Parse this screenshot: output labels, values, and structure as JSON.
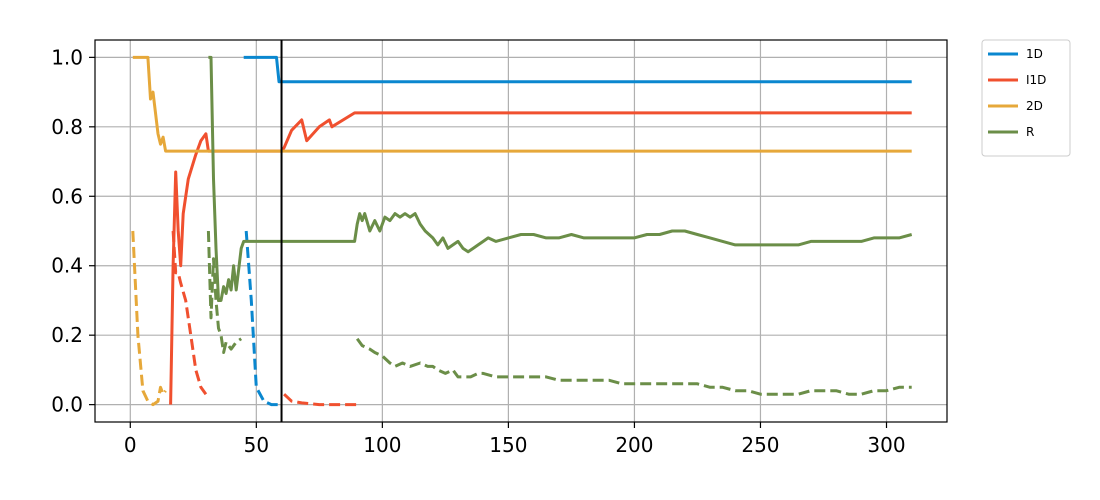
{
  "chart_data": {
    "type": "line",
    "title": "",
    "xlabel": "",
    "ylabel": "",
    "xlim": [
      -14,
      324
    ],
    "ylim": [
      -0.05,
      1.05
    ],
    "xticks": [
      0,
      50,
      100,
      150,
      200,
      250,
      300
    ],
    "yticks": [
      0.0,
      0.2,
      0.4,
      0.6,
      0.8,
      1.0
    ],
    "xtick_labels": [
      "0",
      "50",
      "100",
      "150",
      "200",
      "250",
      "300"
    ],
    "ytick_labels": [
      "0.0",
      "0.2",
      "0.4",
      "0.6",
      "0.8",
      "1.0"
    ],
    "grid": true,
    "legend_position": "outside-top-right",
    "vertical_line_x": 60,
    "legend": [
      {
        "name": "1D",
        "color": "#0a87cf"
      },
      {
        "name": "I1D",
        "color": "#f0502f"
      },
      {
        "name": "2D",
        "color": "#e6a83a"
      },
      {
        "name": "R",
        "color": "#6b8e48"
      }
    ],
    "series": [
      {
        "name": "1D",
        "color": "#0a87cf",
        "style": "solid",
        "points": [
          [
            45,
            1.0
          ],
          [
            58,
            1.0
          ],
          [
            59,
            0.93
          ],
          [
            310,
            0.93
          ]
        ]
      },
      {
        "name": "1D",
        "color": "#0a87cf",
        "style": "dashed",
        "points": [
          [
            46,
            0.5
          ],
          [
            48,
            0.3
          ],
          [
            50,
            0.05
          ],
          [
            53,
            0.01
          ],
          [
            56,
            0.0
          ],
          [
            59,
            0.0
          ]
        ]
      },
      {
        "name": "I1D",
        "color": "#f0502f",
        "style": "solid",
        "points": [
          [
            16,
            0.0
          ],
          [
            17,
            0.4
          ],
          [
            18,
            0.67
          ],
          [
            19,
            0.5
          ],
          [
            20,
            0.4
          ],
          [
            21,
            0.55
          ],
          [
            23,
            0.65
          ],
          [
            26,
            0.72
          ],
          [
            28,
            0.76
          ],
          [
            30,
            0.78
          ],
          [
            31,
            0.73
          ],
          [
            60,
            0.73
          ],
          [
            61,
            0.74
          ],
          [
            64,
            0.79
          ],
          [
            68,
            0.82
          ],
          [
            70,
            0.76
          ],
          [
            75,
            0.8
          ],
          [
            79,
            0.82
          ],
          [
            80,
            0.8
          ],
          [
            89,
            0.84
          ],
          [
            310,
            0.84
          ]
        ]
      },
      {
        "name": "I1D",
        "color": "#f0502f",
        "style": "dashed",
        "points": [
          [
            17,
            0.5
          ],
          [
            18,
            0.38
          ],
          [
            19,
            0.38
          ],
          [
            20,
            0.35
          ],
          [
            22,
            0.3
          ],
          [
            24,
            0.2
          ],
          [
            26,
            0.1
          ],
          [
            28,
            0.05
          ],
          [
            30,
            0.03
          ]
        ]
      },
      {
        "name": "I1D",
        "color": "#f0502f",
        "style": "dashed",
        "points": [
          [
            61,
            0.03
          ],
          [
            64,
            0.01
          ],
          [
            68,
            0.005
          ],
          [
            75,
            0.0
          ],
          [
            90,
            0.0
          ]
        ]
      },
      {
        "name": "2D",
        "color": "#e6a83a",
        "style": "solid",
        "points": [
          [
            1,
            1.0
          ],
          [
            7,
            1.0
          ],
          [
            8,
            0.88
          ],
          [
            9,
            0.9
          ],
          [
            10,
            0.84
          ],
          [
            11,
            0.78
          ],
          [
            12,
            0.75
          ],
          [
            13,
            0.77
          ],
          [
            14,
            0.73
          ],
          [
            310,
            0.73
          ]
        ]
      },
      {
        "name": "2D",
        "color": "#e6a83a",
        "style": "dashed",
        "points": [
          [
            1,
            0.5
          ],
          [
            3,
            0.2
          ],
          [
            5,
            0.04
          ],
          [
            7,
            0.01
          ],
          [
            9,
            0.0
          ],
          [
            11,
            0.01
          ],
          [
            12,
            0.05
          ],
          [
            13,
            0.03
          ],
          [
            14,
            0.04
          ]
        ]
      },
      {
        "name": "R",
        "color": "#6b8e48",
        "style": "solid",
        "points": [
          [
            31,
            1.0
          ],
          [
            32,
            1.0
          ],
          [
            33,
            0.65
          ],
          [
            34,
            0.45
          ],
          [
            35,
            0.3
          ],
          [
            36,
            0.3
          ],
          [
            37,
            0.34
          ],
          [
            38,
            0.32
          ],
          [
            39,
            0.36
          ],
          [
            40,
            0.33
          ],
          [
            41,
            0.4
          ],
          [
            42,
            0.33
          ],
          [
            44,
            0.45
          ],
          [
            45,
            0.47
          ],
          [
            89,
            0.47
          ],
          [
            90,
            0.52
          ],
          [
            91,
            0.55
          ],
          [
            92,
            0.53
          ],
          [
            93,
            0.55
          ],
          [
            95,
            0.5
          ],
          [
            97,
            0.53
          ],
          [
            99,
            0.5
          ],
          [
            101,
            0.54
          ],
          [
            103,
            0.53
          ],
          [
            105,
            0.55
          ],
          [
            107,
            0.54
          ],
          [
            109,
            0.55
          ],
          [
            111,
            0.54
          ],
          [
            113,
            0.55
          ],
          [
            115,
            0.52
          ],
          [
            117,
            0.5
          ],
          [
            120,
            0.48
          ],
          [
            122,
            0.46
          ],
          [
            124,
            0.48
          ],
          [
            126,
            0.45
          ],
          [
            128,
            0.46
          ],
          [
            130,
            0.47
          ],
          [
            132,
            0.45
          ],
          [
            134,
            0.44
          ],
          [
            136,
            0.45
          ],
          [
            138,
            0.46
          ],
          [
            140,
            0.47
          ],
          [
            142,
            0.48
          ],
          [
            145,
            0.47
          ],
          [
            150,
            0.48
          ],
          [
            155,
            0.49
          ],
          [
            160,
            0.49
          ],
          [
            165,
            0.48
          ],
          [
            170,
            0.48
          ],
          [
            175,
            0.49
          ],
          [
            180,
            0.48
          ],
          [
            185,
            0.48
          ],
          [
            190,
            0.48
          ],
          [
            195,
            0.48
          ],
          [
            200,
            0.48
          ],
          [
            205,
            0.49
          ],
          [
            210,
            0.49
          ],
          [
            215,
            0.5
          ],
          [
            220,
            0.5
          ],
          [
            225,
            0.49
          ],
          [
            230,
            0.48
          ],
          [
            235,
            0.47
          ],
          [
            240,
            0.46
          ],
          [
            245,
            0.46
          ],
          [
            250,
            0.46
          ],
          [
            255,
            0.46
          ],
          [
            260,
            0.46
          ],
          [
            265,
            0.46
          ],
          [
            270,
            0.47
          ],
          [
            275,
            0.47
          ],
          [
            280,
            0.47
          ],
          [
            285,
            0.47
          ],
          [
            290,
            0.47
          ],
          [
            295,
            0.48
          ],
          [
            300,
            0.48
          ],
          [
            305,
            0.48
          ],
          [
            310,
            0.49
          ]
        ]
      },
      {
        "name": "R",
        "color": "#6b8e48",
        "style": "dashed",
        "points": [
          [
            31,
            0.5
          ],
          [
            32,
            0.25
          ],
          [
            33,
            0.42
          ],
          [
            34,
            0.3
          ],
          [
            35,
            0.22
          ],
          [
            36,
            0.2
          ],
          [
            37,
            0.15
          ],
          [
            38,
            0.18
          ],
          [
            40,
            0.16
          ],
          [
            42,
            0.18
          ],
          [
            44,
            0.19
          ]
        ]
      },
      {
        "name": "R",
        "color": "#6b8e48",
        "style": "dashed",
        "points": [
          [
            90,
            0.19
          ],
          [
            92,
            0.17
          ],
          [
            95,
            0.16
          ],
          [
            97,
            0.15
          ],
          [
            100,
            0.14
          ],
          [
            103,
            0.12
          ],
          [
            105,
            0.11
          ],
          [
            108,
            0.12
          ],
          [
            111,
            0.11
          ],
          [
            115,
            0.12
          ],
          [
            118,
            0.11
          ],
          [
            120,
            0.11
          ],
          [
            122,
            0.1
          ],
          [
            125,
            0.09
          ],
          [
            128,
            0.1
          ],
          [
            130,
            0.08
          ],
          [
            133,
            0.08
          ],
          [
            135,
            0.08
          ],
          [
            138,
            0.09
          ],
          [
            140,
            0.09
          ],
          [
            145,
            0.08
          ],
          [
            150,
            0.08
          ],
          [
            155,
            0.08
          ],
          [
            160,
            0.08
          ],
          [
            165,
            0.08
          ],
          [
            170,
            0.07
          ],
          [
            175,
            0.07
          ],
          [
            180,
            0.07
          ],
          [
            185,
            0.07
          ],
          [
            190,
            0.07
          ],
          [
            195,
            0.06
          ],
          [
            200,
            0.06
          ],
          [
            205,
            0.06
          ],
          [
            210,
            0.06
          ],
          [
            215,
            0.06
          ],
          [
            220,
            0.06
          ],
          [
            225,
            0.06
          ],
          [
            230,
            0.05
          ],
          [
            235,
            0.05
          ],
          [
            240,
            0.04
          ],
          [
            245,
            0.04
          ],
          [
            250,
            0.03
          ],
          [
            255,
            0.03
          ],
          [
            260,
            0.03
          ],
          [
            265,
            0.03
          ],
          [
            270,
            0.04
          ],
          [
            275,
            0.04
          ],
          [
            280,
            0.04
          ],
          [
            285,
            0.03
          ],
          [
            290,
            0.03
          ],
          [
            295,
            0.04
          ],
          [
            300,
            0.04
          ],
          [
            305,
            0.05
          ],
          [
            310,
            0.05
          ]
        ]
      }
    ]
  }
}
